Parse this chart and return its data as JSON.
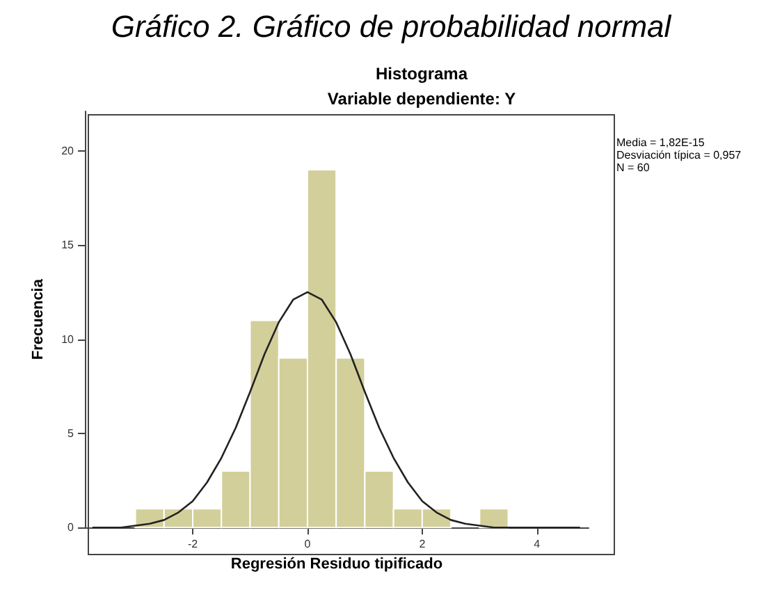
{
  "chart_data": {
    "type": "histogram",
    "title": "Histograma",
    "subtitle": "Variable dependiente: Y",
    "xlabel": "Regresión Residuo tipificado",
    "ylabel": "Frecuencia",
    "annotations": [
      "Gráfico 2. Gráfico de probabilidad normal",
      "Media = 1,82E-15",
      "Desviación típica = 0,957",
      "N = 60"
    ],
    "bins": [
      -3,
      -2.5,
      -2,
      -1.5,
      -1,
      -0.5,
      0,
      0.5,
      1,
      1.5,
      2,
      2.5,
      3,
      3.5
    ],
    "values": [
      1,
      1,
      1,
      3,
      11,
      9,
      19,
      9,
      3,
      1,
      1,
      0,
      1
    ],
    "color": "#d3cf9a",
    "series": [
      {
        "type": "line",
        "color": "#222222",
        "x": [
          -3.75,
          -3.5,
          -3.25,
          -3,
          -2.75,
          -2.5,
          -2.25,
          -2,
          -1.75,
          -1.5,
          -1.25,
          -1,
          -0.75,
          -0.5,
          -0.25,
          0,
          0.25,
          0.5,
          0.75,
          1,
          1.25,
          1.5,
          1.75,
          2,
          2.25,
          2.5,
          2.75,
          3,
          3.25,
          3.5,
          3.75,
          4,
          4.25,
          4.5,
          4.75
        ],
        "values": [
          0,
          0,
          0,
          0.1,
          0.2,
          0.4,
          0.8,
          1.4,
          2.4,
          3.7,
          5.3,
          7.2,
          9.2,
          10.9,
          12.1,
          12.5,
          12.1,
          10.9,
          9.2,
          7.2,
          5.3,
          3.7,
          2.4,
          1.4,
          0.8,
          0.4,
          0.2,
          0.1,
          0,
          0,
          0,
          0,
          0,
          0,
          0
        ]
      }
    ],
    "xlim": [
      -3.88,
      4.9
    ],
    "xticks": [
      -2,
      0,
      2,
      4
    ],
    "ylim": [
      0,
      22.1
    ],
    "yticks": [
      0,
      5,
      10,
      15,
      20
    ]
  }
}
